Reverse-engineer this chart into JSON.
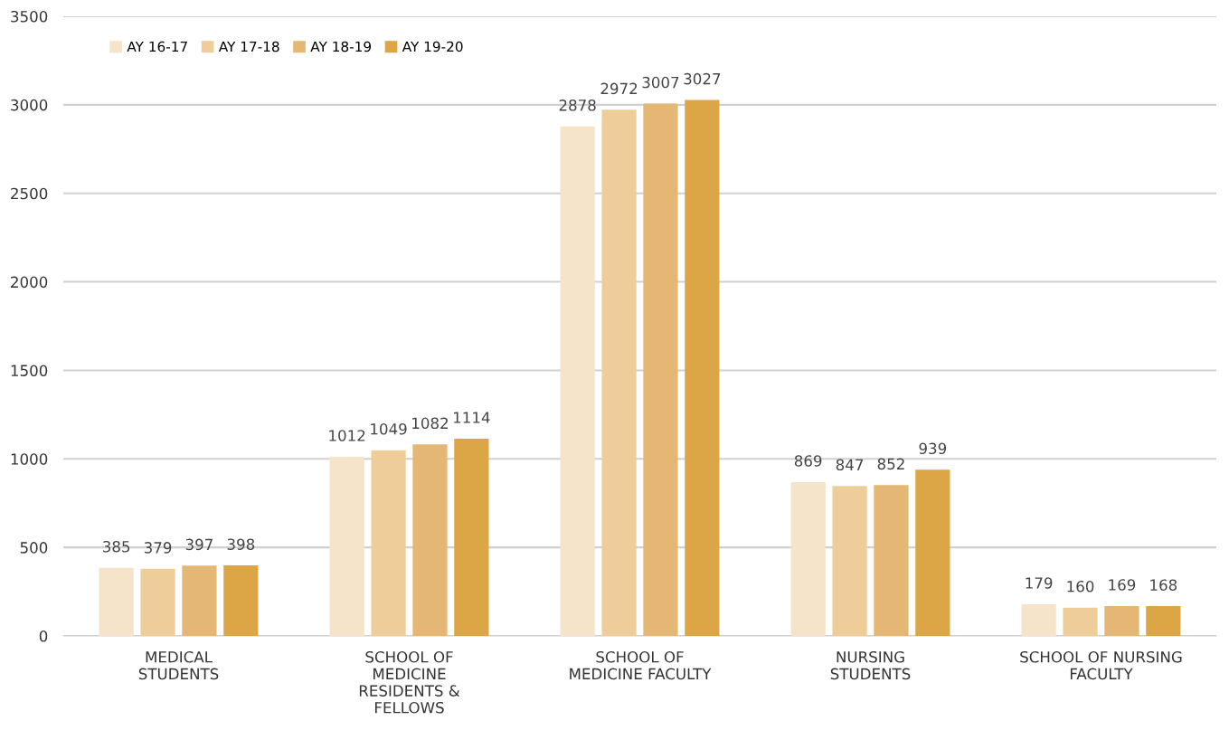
{
  "chart_data": {
    "type": "bar",
    "categories": [
      "MEDICAL\nSTUDENTS",
      "SCHOOL OF\nMEDICINE\nRESIDENTS &\nFELLOWS",
      "SCHOOL OF\nMEDICINE FACULTY",
      "NURSING\nSTUDENTS",
      "SCHOOL OF NURSING\nFACULTY"
    ],
    "series": [
      {
        "name": "AY 16-17",
        "color": "#f5e4c9",
        "values": [
          385,
          1012,
          2878,
          869,
          179
        ]
      },
      {
        "name": "AY 17-18",
        "color": "#efcd9b",
        "values": [
          379,
          1049,
          2972,
          847,
          160
        ]
      },
      {
        "name": "AY 18-19",
        "color": "#e5b774",
        "values": [
          397,
          1082,
          3007,
          852,
          169
        ]
      },
      {
        "name": "AY 19-20",
        "color": "#dca647",
        "values": [
          398,
          1114,
          3027,
          939,
          168
        ]
      }
    ],
    "ylim": [
      0,
      3500
    ],
    "yticks": [
      0,
      500,
      1000,
      1500,
      2000,
      2500,
      3000,
      3500
    ],
    "grid": "y",
    "legend": "top left",
    "data_labels": true
  }
}
